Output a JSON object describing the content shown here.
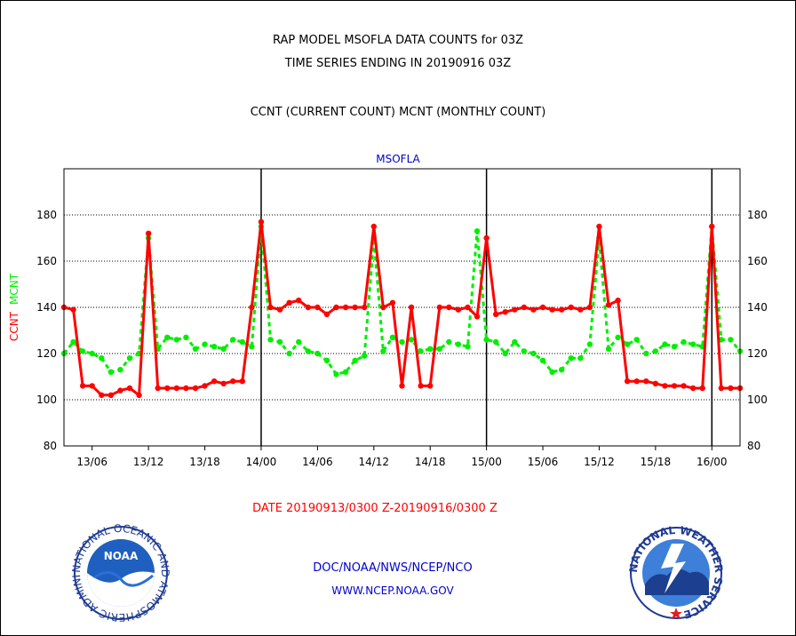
{
  "titles": {
    "line1": "RAP MODEL MSOFLA DATA COUNTS for 03Z",
    "line2": "TIME SERIES ENDING IN 20190916 03Z",
    "line3": "CCNT (CURRENT COUNT) MCNT (MONTHLY COUNT)",
    "station": "MSOFLA",
    "date_range": "DATE 20190913/0300 Z-20190916/0300 Z"
  },
  "footer": {
    "org": "DOC/NOAA/NWS/NCEP/NCO",
    "url": "WWW.NCEP.NOAA.GOV"
  },
  "logos": {
    "noaa_text": "NOAA",
    "noaa_ring": "NATIONAL OCEANIC AND ATMOSPHERIC ADMINISTRATION · U.S. DEPARTMENT OF COMMERCE",
    "nws_ring": "NATIONAL WEATHER SERVICE"
  },
  "colors": {
    "ccnt": "#ff0000",
    "mcnt": "#00ee00",
    "text_blue": "#0000cc",
    "grid": "#000000"
  },
  "chart_data": {
    "type": "line",
    "ylabel_left": [
      "CCNT",
      "MCNT"
    ],
    "ylim": [
      80,
      200
    ],
    "yticks": [
      80,
      100,
      120,
      140,
      160,
      180
    ],
    "x_hours_from_start": [
      0,
      72
    ],
    "x_tick_labels": [
      {
        "h": 3,
        "label": "13/06"
      },
      {
        "h": 9,
        "label": "13/12"
      },
      {
        "h": 15,
        "label": "13/18"
      },
      {
        "h": 21,
        "label": "14/00"
      },
      {
        "h": 27,
        "label": "14/06"
      },
      {
        "h": 33,
        "label": "14/12"
      },
      {
        "h": 39,
        "label": "14/18"
      },
      {
        "h": 45,
        "label": "15/00"
      },
      {
        "h": 51,
        "label": "15/06"
      },
      {
        "h": 57,
        "label": "15/12"
      },
      {
        "h": 63,
        "label": "15/18"
      },
      {
        "h": 69,
        "label": "16/00"
      }
    ],
    "day_lines_h": [
      21,
      45,
      69
    ],
    "grid": true,
    "series": [
      {
        "name": "CCNT",
        "color": "#ff0000",
        "dashed": false,
        "values": [
          140,
          139,
          106,
          106,
          102,
          102,
          104,
          105,
          102,
          172,
          105,
          105,
          105,
          105,
          105,
          106,
          108,
          107,
          108,
          108,
          140,
          177,
          140,
          139,
          142,
          143,
          140,
          140,
          137,
          140,
          140,
          140,
          140,
          175,
          140,
          142,
          106,
          140,
          106,
          106,
          140,
          140,
          139,
          140,
          136,
          170,
          137,
          138,
          139,
          140,
          139,
          140,
          139,
          139,
          140,
          139,
          140,
          175,
          141,
          143,
          108,
          108,
          108,
          107,
          106,
          106,
          106,
          105,
          105,
          175,
          105,
          105,
          105
        ]
      },
      {
        "name": "MCNT",
        "color": "#00ee00",
        "dashed": true,
        "values": [
          120,
          125,
          121,
          120,
          118,
          112,
          113,
          118,
          120,
          170,
          122,
          127,
          126,
          127,
          122,
          124,
          123,
          122,
          126,
          125,
          123,
          175,
          126,
          125,
          120,
          125,
          121,
          120,
          117,
          111,
          112,
          117,
          119,
          170,
          121,
          127,
          125,
          126,
          121,
          122,
          122,
          125,
          124,
          123,
          173,
          126,
          125,
          120,
          125,
          121,
          120,
          117,
          112,
          113,
          118,
          118,
          124,
          170,
          122,
          127,
          124,
          126,
          120,
          121,
          124,
          123,
          125,
          124,
          123,
          175,
          126,
          126,
          121
        ]
      }
    ]
  }
}
